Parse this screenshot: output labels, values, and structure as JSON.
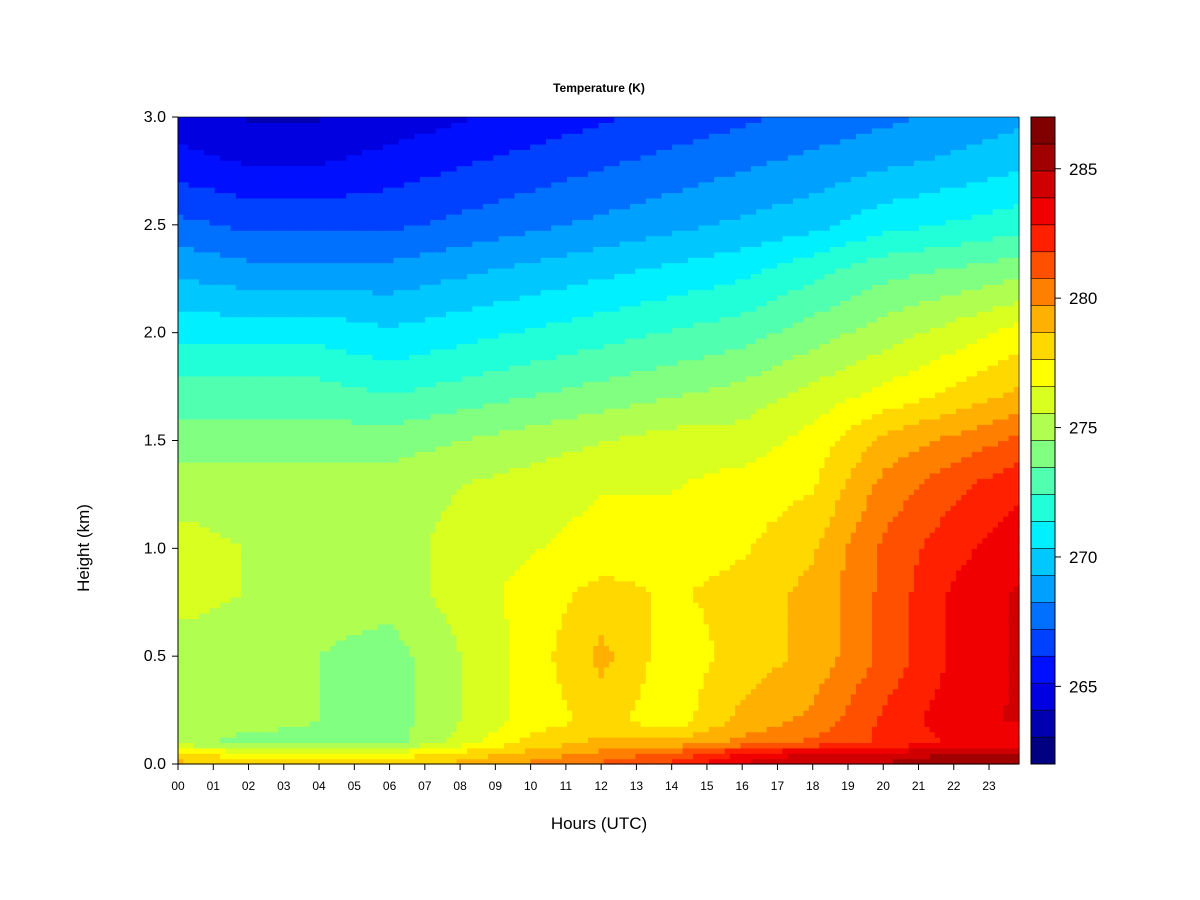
{
  "chart_data": {
    "type": "heatmap",
    "title": "Temperature (K)",
    "xlabel": "Hours (UTC)",
    "ylabel": "Height (km)",
    "xlim": [
      0,
      23.85
    ],
    "ylim": [
      0.0,
      3.0
    ],
    "x_ticks": [
      "00",
      "01",
      "02",
      "03",
      "04",
      "05",
      "06",
      "07",
      "08",
      "09",
      "10",
      "11",
      "12",
      "13",
      "14",
      "15",
      "16",
      "17",
      "18",
      "19",
      "20",
      "21",
      "22",
      "23"
    ],
    "y_ticks": [
      "0.0",
      "0.5",
      "1.0",
      "1.5",
      "2.0",
      "2.5",
      "3.0"
    ],
    "colorbar": {
      "min": 262,
      "max": 287,
      "levels": 24,
      "ticks": [
        "265",
        "270",
        "275",
        "280",
        "285"
      ],
      "colors": [
        "#000080",
        "#0000b0",
        "#0000e0",
        "#0010ff",
        "#0040ff",
        "#0070ff",
        "#00a0ff",
        "#00c8ff",
        "#00f0ff",
        "#20ffd8",
        "#50ffb0",
        "#80ff80",
        "#b0ff50",
        "#d8ff20",
        "#ffff00",
        "#ffd800",
        "#ffb000",
        "#ff8000",
        "#ff5000",
        "#ff2000",
        "#f00000",
        "#d00000",
        "#a00000",
        "#800000"
      ]
    },
    "heights_km": [
      0.0,
      0.05,
      0.1,
      0.2,
      0.5,
      0.8,
      1.0,
      1.3,
      1.5,
      1.7,
      2.0,
      2.3,
      2.5,
      2.8,
      3.0
    ],
    "hours": [
      0,
      2,
      4,
      6,
      8,
      10,
      12,
      14,
      16,
      18,
      20,
      22,
      23.85
    ],
    "values": [
      [
        279,
        278,
        278,
        278,
        279,
        280,
        281,
        282,
        284,
        285,
        285,
        286,
        286
      ],
      [
        278,
        277,
        277,
        277,
        278,
        279,
        280,
        281,
        283,
        284,
        284,
        285,
        285
      ],
      [
        275,
        274,
        274,
        274,
        276,
        278,
        279,
        279,
        280,
        281,
        282,
        283,
        283
      ],
      [
        275,
        275,
        274.5,
        274,
        275.5,
        277,
        278,
        277,
        279,
        280,
        282,
        283.5,
        284
      ],
      [
        275,
        275,
        274.5,
        274,
        275.5,
        277,
        279,
        277,
        278,
        279,
        281,
        283,
        284
      ],
      [
        276,
        275.5,
        275,
        275,
        276,
        277,
        278,
        277.5,
        278,
        279,
        281,
        283,
        284
      ],
      [
        276,
        275.5,
        275,
        275,
        276,
        276.5,
        277,
        277,
        277.5,
        278.5,
        281,
        282.5,
        283.5
      ],
      [
        275,
        275,
        275,
        275,
        275.5,
        276,
        276.5,
        276.5,
        277,
        277.5,
        280,
        281.5,
        282.5
      ],
      [
        274,
        274,
        274,
        274,
        274.5,
        275,
        275.5,
        276,
        276,
        277,
        279,
        280,
        281
      ],
      [
        273,
        273,
        273,
        272.5,
        273,
        273.5,
        274,
        274.5,
        275,
        276,
        277,
        278,
        279
      ],
      [
        271,
        271,
        271,
        270.5,
        271,
        271.5,
        272,
        272.5,
        273,
        274,
        275,
        276,
        277
      ],
      [
        269,
        268.5,
        268.5,
        268.5,
        269,
        269.5,
        270,
        270.5,
        271,
        272,
        273,
        273.5,
        274
      ],
      [
        267.5,
        267,
        267,
        267,
        267.5,
        268,
        268.5,
        269,
        269.5,
        270,
        271,
        271.5,
        272
      ],
      [
        265.5,
        265,
        265,
        265.5,
        266,
        266.5,
        267,
        267.5,
        268,
        268.5,
        269,
        269.5,
        270
      ],
      [
        264.5,
        264,
        264,
        264.5,
        265,
        265.5,
        266,
        266.5,
        267,
        267.5,
        268,
        268.5,
        269
      ]
    ]
  }
}
